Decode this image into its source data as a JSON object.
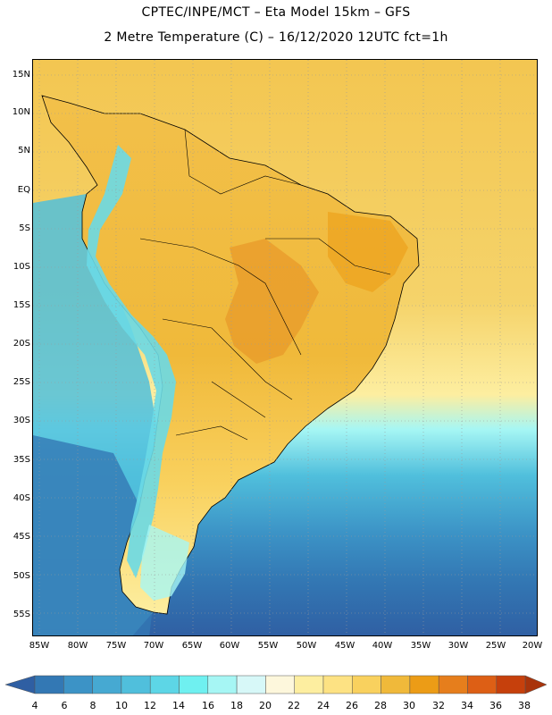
{
  "title_line1": "CPTEC/INPE/MCT –  Eta Model 15km – GFS",
  "title_line2": "2 Metre Temperature (C) – 16/12/2020 12UTC fct=1h",
  "lat_labels": [
    "15N",
    "10N",
    "5N",
    "EQ",
    "5S",
    "10S",
    "15S",
    "20S",
    "25S",
    "30S",
    "35S",
    "40S",
    "45S",
    "50S",
    "55S"
  ],
  "lon_labels": [
    "85W",
    "80W",
    "75W",
    "70W",
    "65W",
    "60W",
    "55W",
    "50W",
    "45W",
    "40W",
    "35W",
    "30W",
    "25W",
    "20W"
  ],
  "colorbar": {
    "levels": [
      "4",
      "6",
      "8",
      "10",
      "12",
      "14",
      "16",
      "18",
      "20",
      "22",
      "24",
      "26",
      "28",
      "30",
      "32",
      "34",
      "36",
      "38"
    ],
    "colors": [
      "#2f5fa3",
      "#3378b4",
      "#3c93c6",
      "#46a9d2",
      "#50bfdc",
      "#5dd6e6",
      "#6ff0f0",
      "#a6f6f4",
      "#d7f8f8",
      "#fdf7dc",
      "#fdeea0",
      "#fde283",
      "#f9d15e",
      "#f0b93a",
      "#ec9c16",
      "#e67e1c",
      "#dd5f15",
      "#c6400c",
      "#a9340b"
    ]
  },
  "map": {
    "ocean_south_color": "#2f5fa3",
    "ocean_mid_color": "#50bfdc",
    "tropical_color": "#f9d15e",
    "land_color": "#f4c24d",
    "hot_core_color": "#e8992a",
    "andes_color": "#6ad9e6",
    "coastline_color": "#000000",
    "grid_color": "#9a9a9a"
  }
}
